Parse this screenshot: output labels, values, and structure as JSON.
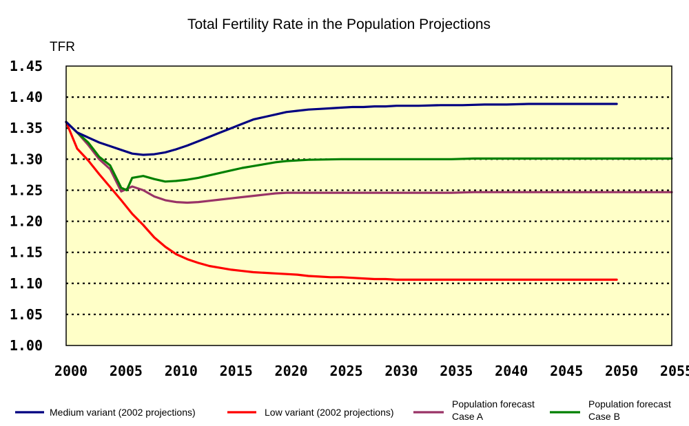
{
  "chart_data": {
    "type": "line",
    "title": "Total Fertility Rate in the Population Projections",
    "ylabel": "TFR",
    "xlabel": "",
    "xlim": [
      2000,
      2055
    ],
    "ylim": [
      1.0,
      1.45
    ],
    "x_ticks": [
      "2000",
      "2005",
      "2010",
      "2015",
      "2020",
      "2025",
      "2030",
      "2035",
      "2040",
      "2045",
      "2050",
      "2055"
    ],
    "y_ticks": [
      "1.45",
      "1.40",
      "1.35",
      "1.30",
      "1.25",
      "1.20",
      "1.15",
      "1.10",
      "1.05",
      "1.00"
    ],
    "grid": "horizontal dotted",
    "background": "#ffffc8",
    "legend_position": "bottom",
    "series": [
      {
        "name": "Medium variant (2002 projections)",
        "color": "#000080",
        "points": [
          [
            2000,
            1.36
          ],
          [
            2001,
            1.343
          ],
          [
            2002,
            1.335
          ],
          [
            2003,
            1.327
          ],
          [
            2004,
            1.321
          ],
          [
            2005,
            1.315
          ],
          [
            2006,
            1.309
          ],
          [
            2007,
            1.307
          ],
          [
            2008,
            1.308
          ],
          [
            2009,
            1.311
          ],
          [
            2010,
            1.316
          ],
          [
            2011,
            1.322
          ],
          [
            2012,
            1.329
          ],
          [
            2013,
            1.336
          ],
          [
            2014,
            1.343
          ],
          [
            2015,
            1.35
          ],
          [
            2016,
            1.357
          ],
          [
            2017,
            1.364
          ],
          [
            2018,
            1.368
          ],
          [
            2019,
            1.372
          ],
          [
            2020,
            1.376
          ],
          [
            2021,
            1.378
          ],
          [
            2022,
            1.38
          ],
          [
            2023,
            1.381
          ],
          [
            2024,
            1.382
          ],
          [
            2025,
            1.383
          ],
          [
            2026,
            1.384
          ],
          [
            2027,
            1.384
          ],
          [
            2028,
            1.385
          ],
          [
            2029,
            1.385
          ],
          [
            2030,
            1.386
          ],
          [
            2032,
            1.386
          ],
          [
            2034,
            1.387
          ],
          [
            2036,
            1.387
          ],
          [
            2038,
            1.388
          ],
          [
            2040,
            1.388
          ],
          [
            2042,
            1.389
          ],
          [
            2045,
            1.389
          ],
          [
            2048,
            1.389
          ],
          [
            2050,
            1.389
          ]
        ]
      },
      {
        "name": "Low variant (2002 projections)",
        "color": "#ff0000",
        "points": [
          [
            2000,
            1.36
          ],
          [
            2001,
            1.317
          ],
          [
            2002,
            1.298
          ],
          [
            2003,
            1.276
          ],
          [
            2004,
            1.255
          ],
          [
            2005,
            1.234
          ],
          [
            2006,
            1.212
          ],
          [
            2007,
            1.194
          ],
          [
            2008,
            1.174
          ],
          [
            2009,
            1.159
          ],
          [
            2010,
            1.147
          ],
          [
            2011,
            1.139
          ],
          [
            2012,
            1.133
          ],
          [
            2013,
            1.128
          ],
          [
            2014,
            1.125
          ],
          [
            2015,
            1.122
          ],
          [
            2016,
            1.12
          ],
          [
            2017,
            1.118
          ],
          [
            2018,
            1.117
          ],
          [
            2019,
            1.116
          ],
          [
            2020,
            1.115
          ],
          [
            2021,
            1.114
          ],
          [
            2022,
            1.112
          ],
          [
            2023,
            1.111
          ],
          [
            2024,
            1.11
          ],
          [
            2025,
            1.11
          ],
          [
            2026,
            1.109
          ],
          [
            2027,
            1.108
          ],
          [
            2028,
            1.107
          ],
          [
            2029,
            1.107
          ],
          [
            2030,
            1.106
          ],
          [
            2035,
            1.106
          ],
          [
            2040,
            1.106
          ],
          [
            2045,
            1.106
          ],
          [
            2050,
            1.106
          ]
        ]
      },
      {
        "name": "Population forecast Case A",
        "name_lines": [
          "Population forecast",
          "Case A"
        ],
        "color": "#993366",
        "points": [
          [
            2000,
            1.36
          ],
          [
            2001,
            1.343
          ],
          [
            2002,
            1.323
          ],
          [
            2003,
            1.3
          ],
          [
            2004,
            1.284
          ],
          [
            2005,
            1.248
          ],
          [
            2006,
            1.256
          ],
          [
            2007,
            1.25
          ],
          [
            2008,
            1.24
          ],
          [
            2009,
            1.234
          ],
          [
            2010,
            1.231
          ],
          [
            2011,
            1.23
          ],
          [
            2012,
            1.231
          ],
          [
            2013,
            1.233
          ],
          [
            2014,
            1.235
          ],
          [
            2015,
            1.237
          ],
          [
            2016,
            1.239
          ],
          [
            2017,
            1.241
          ],
          [
            2018,
            1.243
          ],
          [
            2019,
            1.245
          ],
          [
            2020,
            1.246
          ],
          [
            2022,
            1.246
          ],
          [
            2025,
            1.246
          ],
          [
            2030,
            1.246
          ],
          [
            2035,
            1.246
          ],
          [
            2037,
            1.247
          ],
          [
            2040,
            1.247
          ],
          [
            2045,
            1.247
          ],
          [
            2050,
            1.247
          ],
          [
            2055,
            1.247
          ]
        ]
      },
      {
        "name": "Population forecast Case B",
        "name_lines": [
          "Population forecast",
          "Case B"
        ],
        "color": "#008000",
        "points": [
          [
            2000,
            1.36
          ],
          [
            2001,
            1.343
          ],
          [
            2002,
            1.327
          ],
          [
            2003,
            1.304
          ],
          [
            2004,
            1.29
          ],
          [
            2005,
            1.254
          ],
          [
            2005.5,
            1.25
          ],
          [
            2006,
            1.27
          ],
          [
            2007,
            1.273
          ],
          [
            2008,
            1.268
          ],
          [
            2009,
            1.264
          ],
          [
            2010,
            1.265
          ],
          [
            2011,
            1.267
          ],
          [
            2012,
            1.27
          ],
          [
            2013,
            1.274
          ],
          [
            2014,
            1.278
          ],
          [
            2015,
            1.282
          ],
          [
            2016,
            1.286
          ],
          [
            2017,
            1.289
          ],
          [
            2018,
            1.292
          ],
          [
            2019,
            1.295
          ],
          [
            2020,
            1.297
          ],
          [
            2022,
            1.299
          ],
          [
            2025,
            1.3
          ],
          [
            2030,
            1.3
          ],
          [
            2035,
            1.3
          ],
          [
            2037,
            1.301
          ],
          [
            2040,
            1.301
          ],
          [
            2045,
            1.301
          ],
          [
            2050,
            1.301
          ],
          [
            2055,
            1.301
          ]
        ]
      }
    ]
  }
}
